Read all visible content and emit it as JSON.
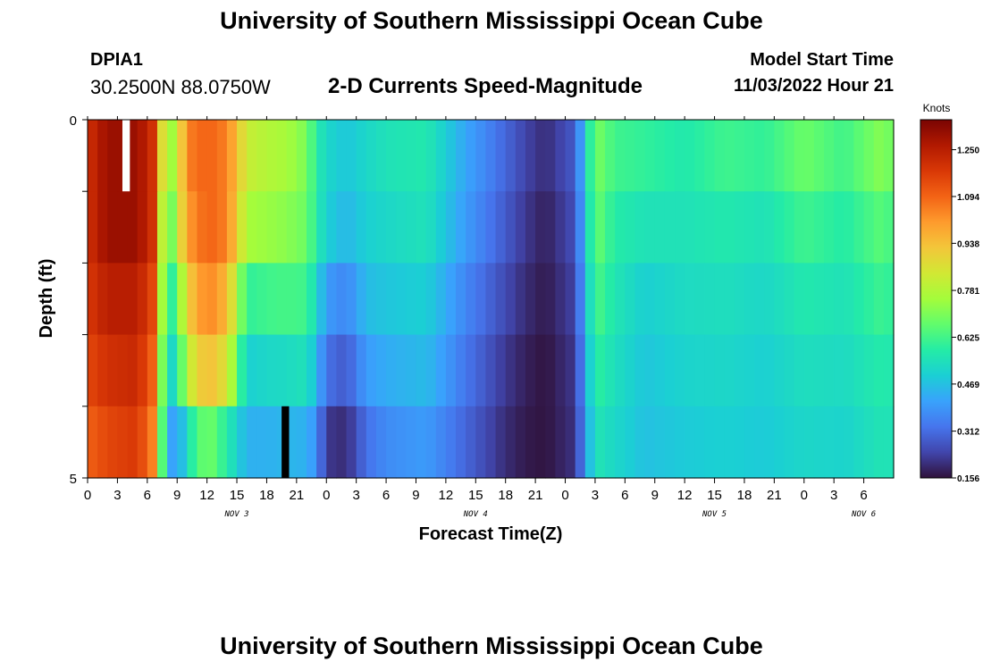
{
  "header": {
    "main_title": "University of Southern Mississippi Ocean Cube",
    "station_id": "DPIA1",
    "coordinates": "30.2500N  88.0750W",
    "chart_title": "2-D Currents Speed-Magnitude",
    "model_start_label": "Model Start Time",
    "model_start_value": "11/03/2022 Hour 21"
  },
  "footer": {
    "repeated_title": "University of Southern Mississippi Ocean Cube"
  },
  "chart_data": {
    "type": "heatmap",
    "title": "2-D Currents Speed-Magnitude",
    "xlabel": "Forecast Time(Z)",
    "ylabel": "Depth (ft)",
    "x_tick_labels": [
      "0",
      "3",
      "6",
      "9",
      "12",
      "15",
      "18",
      "21",
      "0",
      "3",
      "6",
      "9",
      "12",
      "15",
      "18",
      "21",
      "0",
      "3",
      "6",
      "9",
      "12",
      "15",
      "18",
      "21",
      "0",
      "3",
      "6"
    ],
    "date_labels": [
      "NOV 3",
      "NOV 4",
      "NOV 5",
      "NOV 6"
    ],
    "y_tick_labels": [
      "0",
      "5"
    ],
    "ylim": [
      0,
      5
    ],
    "colorbar": {
      "unit": "Knots",
      "min": 0.156,
      "max": 1.35,
      "tick_labels": [
        "1.250",
        "1.094",
        "0.938",
        "0.781",
        "0.625",
        "0.469",
        "0.312",
        "0.156"
      ],
      "tick_values": [
        1.25,
        1.094,
        0.938,
        0.781,
        0.625,
        0.469,
        0.312,
        0.156
      ]
    },
    "layers_surface_to_bottom": 5,
    "keyframes_hours": [
      0,
      2,
      5,
      6.5,
      8,
      9,
      10,
      12,
      14,
      16,
      18,
      20,
      22,
      23,
      24,
      26,
      28,
      30,
      34,
      38,
      42,
      44,
      46,
      49,
      51,
      53,
      56,
      60,
      64,
      68,
      72,
      76,
      80,
      82
    ],
    "values_by_layer": [
      [
        1.2,
        1.3,
        1.3,
        1.2,
        0.7,
        0.8,
        1.05,
        1.1,
        1.05,
        0.82,
        0.78,
        0.76,
        0.7,
        0.58,
        0.52,
        0.48,
        0.52,
        0.55,
        0.57,
        0.42,
        0.3,
        0.24,
        0.2,
        0.28,
        0.7,
        0.62,
        0.6,
        0.57,
        0.62,
        0.6,
        0.68,
        0.62,
        0.72,
        0.6
      ],
      [
        1.2,
        1.3,
        1.3,
        1.2,
        0.6,
        0.8,
        1.0,
        1.1,
        1.05,
        0.76,
        0.74,
        0.72,
        0.68,
        0.58,
        0.5,
        0.45,
        0.5,
        0.52,
        0.55,
        0.4,
        0.28,
        0.22,
        0.18,
        0.26,
        0.68,
        0.58,
        0.55,
        0.55,
        0.57,
        0.55,
        0.62,
        0.58,
        0.66,
        0.56
      ],
      [
        1.18,
        1.25,
        1.25,
        1.15,
        0.55,
        0.65,
        0.9,
        1.05,
        0.95,
        0.6,
        0.62,
        0.63,
        0.62,
        0.52,
        0.4,
        0.36,
        0.46,
        0.48,
        0.5,
        0.36,
        0.25,
        0.2,
        0.17,
        0.24,
        0.64,
        0.56,
        0.5,
        0.53,
        0.54,
        0.52,
        0.57,
        0.55,
        0.62,
        0.55
      ],
      [
        1.15,
        1.2,
        1.22,
        1.1,
        0.5,
        0.55,
        0.8,
        0.95,
        0.85,
        0.5,
        0.52,
        0.53,
        0.55,
        0.45,
        0.32,
        0.28,
        0.4,
        0.43,
        0.46,
        0.33,
        0.22,
        0.18,
        0.16,
        0.22,
        0.6,
        0.54,
        0.48,
        0.51,
        0.52,
        0.5,
        0.54,
        0.53,
        0.58,
        0.54
      ],
      [
        1.1,
        1.15,
        1.18,
        1.05,
        0.45,
        0.38,
        0.55,
        0.7,
        0.58,
        0.44,
        0.44,
        0.45,
        0.44,
        0.38,
        0.22,
        0.2,
        0.32,
        0.37,
        0.4,
        0.3,
        0.2,
        0.17,
        0.16,
        0.21,
        0.56,
        0.52,
        0.47,
        0.49,
        0.5,
        0.49,
        0.52,
        0.51,
        0.56,
        0.53
      ]
    ],
    "missing_cells": [
      {
        "layer": 0,
        "hour_start": 3.5,
        "hour_end": 4.25,
        "fill": "#ffffff"
      },
      {
        "layer": 4,
        "hour_start": 19.5,
        "hour_end": 20.25,
        "fill": "#000000"
      }
    ],
    "colormap_stops": [
      "#30123b",
      "#4145ab",
      "#4675ed",
      "#39a2fc",
      "#1bcfd4",
      "#24eca6",
      "#61fc6c",
      "#a4fc3b",
      "#d1e834",
      "#f3c63a",
      "#fe9b2d",
      "#f36315",
      "#d93806",
      "#b11901",
      "#7a0402"
    ]
  }
}
